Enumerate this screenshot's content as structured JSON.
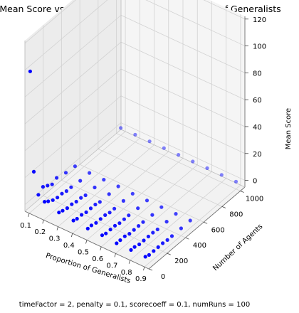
{
  "chart_data": {
    "type": "scatter",
    "projection": "3d",
    "title": "Mean Score vs Number of Agents and Proportion of Generalists",
    "footnote": "timeFactor = 2, penalty = 0.1, scorecoeff = 0.1, numRuns = 100",
    "xlabel": "Proportion of Generalists",
    "ylabel": "Number of Agents",
    "zlabel": "Mean Score",
    "xlim": [
      0.07,
      0.93
    ],
    "ylim": [
      0,
      1050
    ],
    "zlim": [
      -5,
      122
    ],
    "x_ticks": [
      "0.1",
      "0.2",
      "0.3",
      "0.4",
      "0.5",
      "0.6",
      "0.7",
      "0.8",
      "0.9"
    ],
    "y_ticks": [
      "0",
      "200",
      "400",
      "600",
      "800",
      "1000"
    ],
    "z_ticks": [
      "0",
      "20",
      "40",
      "60",
      "80",
      "100",
      "120"
    ],
    "grid": true,
    "marker_color": "#0000ff",
    "series": [
      {
        "points": [
          [
            0.1,
            10,
            100
          ],
          [
            0.1,
            50,
            23
          ],
          [
            0.1,
            100,
            3
          ],
          [
            0.1,
            150,
            6
          ],
          [
            0.1,
            200,
            4
          ],
          [
            0.1,
            250,
            2
          ],
          [
            0.1,
            300,
            4
          ],
          [
            0.1,
            400,
            2
          ],
          [
            0.1,
            500,
            1
          ],
          [
            0.1,
            1000,
            0.5
          ],
          [
            0.2,
            10,
            8
          ],
          [
            0.2,
            50,
            6
          ],
          [
            0.2,
            100,
            4
          ],
          [
            0.2,
            150,
            3
          ],
          [
            0.2,
            200,
            3
          ],
          [
            0.2,
            250,
            2
          ],
          [
            0.2,
            300,
            2
          ],
          [
            0.2,
            400,
            1
          ],
          [
            0.2,
            500,
            1
          ],
          [
            0.2,
            1000,
            0.5
          ],
          [
            0.3,
            10,
            5
          ],
          [
            0.3,
            50,
            4
          ],
          [
            0.3,
            100,
            3
          ],
          [
            0.3,
            150,
            3
          ],
          [
            0.3,
            200,
            2
          ],
          [
            0.3,
            250,
            2
          ],
          [
            0.3,
            300,
            1
          ],
          [
            0.3,
            400,
            1
          ],
          [
            0.3,
            500,
            1
          ],
          [
            0.3,
            1000,
            0.5
          ],
          [
            0.4,
            10,
            4
          ],
          [
            0.4,
            50,
            3
          ],
          [
            0.4,
            100,
            3
          ],
          [
            0.4,
            150,
            2
          ],
          [
            0.4,
            200,
            2
          ],
          [
            0.4,
            250,
            2
          ],
          [
            0.4,
            300,
            1
          ],
          [
            0.4,
            400,
            1
          ],
          [
            0.4,
            500,
            1
          ],
          [
            0.4,
            1000,
            0.5
          ],
          [
            0.5,
            10,
            3
          ],
          [
            0.5,
            50,
            3
          ],
          [
            0.5,
            100,
            2
          ],
          [
            0.5,
            150,
            2
          ],
          [
            0.5,
            200,
            2
          ],
          [
            0.5,
            250,
            1
          ],
          [
            0.5,
            300,
            1
          ],
          [
            0.5,
            400,
            1
          ],
          [
            0.5,
            500,
            0.5
          ],
          [
            0.5,
            1000,
            0.5
          ],
          [
            0.6,
            10,
            3
          ],
          [
            0.6,
            50,
            2
          ],
          [
            0.6,
            100,
            2
          ],
          [
            0.6,
            150,
            2
          ],
          [
            0.6,
            200,
            1
          ],
          [
            0.6,
            250,
            1
          ],
          [
            0.6,
            300,
            1
          ],
          [
            0.6,
            400,
            0.5
          ],
          [
            0.6,
            500,
            0.5
          ],
          [
            0.6,
            1000,
            0.5
          ],
          [
            0.7,
            10,
            2
          ],
          [
            0.7,
            50,
            2
          ],
          [
            0.7,
            100,
            2
          ],
          [
            0.7,
            150,
            1
          ],
          [
            0.7,
            200,
            1
          ],
          [
            0.7,
            250,
            1
          ],
          [
            0.7,
            300,
            1
          ],
          [
            0.7,
            400,
            0.5
          ],
          [
            0.7,
            500,
            0.5
          ],
          [
            0.7,
            1000,
            0.5
          ],
          [
            0.8,
            10,
            2
          ],
          [
            0.8,
            50,
            2
          ],
          [
            0.8,
            100,
            1
          ],
          [
            0.8,
            150,
            1
          ],
          [
            0.8,
            200,
            1
          ],
          [
            0.8,
            250,
            1
          ],
          [
            0.8,
            300,
            0.5
          ],
          [
            0.8,
            400,
            0.5
          ],
          [
            0.8,
            500,
            0.5
          ],
          [
            0.8,
            1000,
            0.5
          ],
          [
            0.9,
            10,
            2
          ],
          [
            0.9,
            50,
            1
          ],
          [
            0.9,
            100,
            1
          ],
          [
            0.9,
            150,
            1
          ],
          [
            0.9,
            200,
            1
          ],
          [
            0.9,
            250,
            0.5
          ],
          [
            0.9,
            300,
            0.5
          ],
          [
            0.9,
            400,
            0.5
          ],
          [
            0.9,
            500,
            0.5
          ],
          [
            0.9,
            1000,
            0.5
          ]
        ]
      }
    ]
  }
}
